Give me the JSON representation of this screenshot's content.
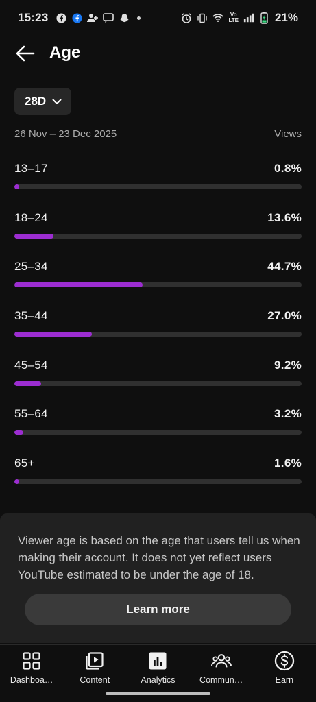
{
  "status_bar": {
    "time": "15:23",
    "volte_top": "Vo",
    "volte_bottom": "LTE",
    "battery": "21%"
  },
  "header": {
    "title": "Age"
  },
  "filter": {
    "period": "28D",
    "date_range": "26 Nov – 23 Dec 2025",
    "metric": "Views"
  },
  "age_groups": [
    {
      "label": "13–17",
      "percent_text": "0.8%",
      "percent": 0.8
    },
    {
      "label": "18–24",
      "percent_text": "13.6%",
      "percent": 13.6
    },
    {
      "label": "25–34",
      "percent_text": "44.7%",
      "percent": 44.7
    },
    {
      "label": "35–44",
      "percent_text": "27.0%",
      "percent": 27.0
    },
    {
      "label": "45–54",
      "percent_text": "9.2%",
      "percent": 9.2
    },
    {
      "label": "55–64",
      "percent_text": "3.2%",
      "percent": 3.2
    },
    {
      "label": "65+",
      "percent_text": "1.6%",
      "percent": 1.6
    }
  ],
  "info": {
    "text": "Viewer age is based on the age that users tell us when making their account. It does not yet reflect users YouTube estimated to be under the age of 18.",
    "button": "Learn more"
  },
  "nav": [
    {
      "label": "Dashboa…",
      "icon": "dashboard-icon"
    },
    {
      "label": "Content",
      "icon": "content-icon"
    },
    {
      "label": "Analytics",
      "icon": "analytics-icon"
    },
    {
      "label": "Commun…",
      "icon": "community-icon"
    },
    {
      "label": "Earn",
      "icon": "earn-icon"
    }
  ],
  "colors": {
    "accent": "#9c2dd1",
    "background": "#0f0f0f",
    "panel": "#212121"
  }
}
